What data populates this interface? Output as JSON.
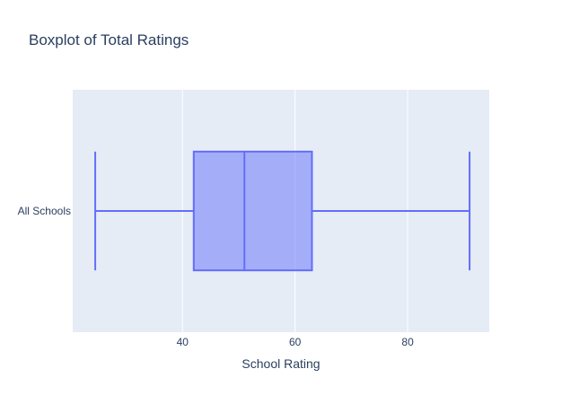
{
  "chart_data": {
    "type": "box",
    "title": "Boxplot of Total Ratings",
    "xlabel": "School Rating",
    "ylabel": "",
    "orientation": "horizontal",
    "xlim": [
      20.5,
      94.5
    ],
    "x_ticks": [
      40,
      60,
      80
    ],
    "grid": true,
    "series": [
      {
        "category": "All Schools",
        "min": 24.5,
        "q1": 42,
        "median": 51,
        "q3": 63,
        "max": 91
      }
    ],
    "colors": {
      "plot_background": "#e5ecf6",
      "grid": "#ffffff",
      "box_line": "#636efa",
      "box_fill": "#636efa",
      "text": "#2a3f5f"
    }
  }
}
